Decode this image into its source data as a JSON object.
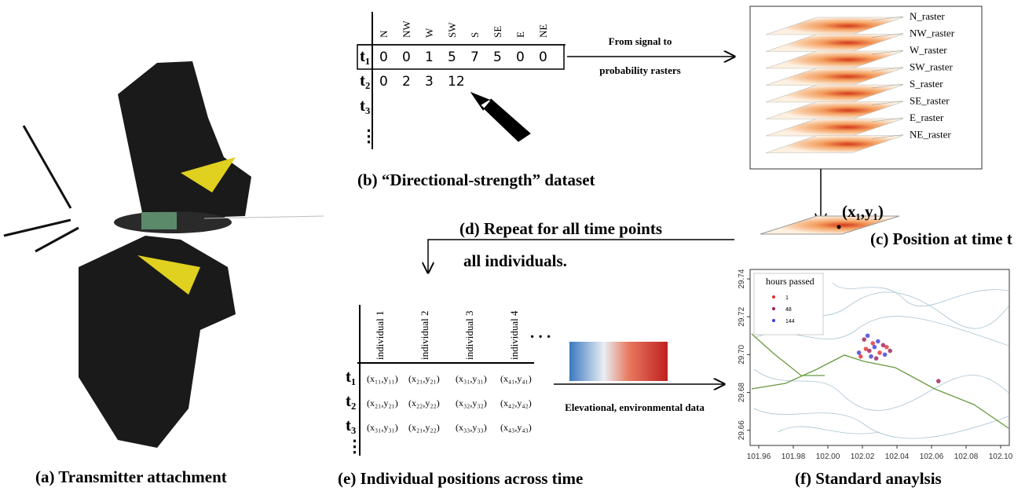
{
  "panel_a": {
    "caption": "(a) Transmitter attachment"
  },
  "panel_b": {
    "caption": "(b) “Directional-strength” dataset",
    "headers": [
      "N",
      "NW",
      "W",
      "SW",
      "S",
      "SE",
      "E",
      "NE"
    ],
    "rows": [
      {
        "label": "t₁",
        "values": [
          "0",
          "0",
          "1",
          "5",
          "7",
          "5",
          "0",
          "0"
        ]
      },
      {
        "label": "t₂",
        "values": [
          "0",
          "2",
          "3",
          "12"
        ]
      },
      {
        "label": "t₃",
        "values": []
      }
    ],
    "ellipsis": "⋮",
    "arrow_label": [
      "From signal to",
      "probability rasters"
    ]
  },
  "panel_c": {
    "rasters": [
      "N_raster",
      "NW_raster",
      "W_raster",
      "SW_raster",
      "S_raster",
      "SE_raster",
      "E_raster",
      "NE_raster"
    ],
    "point_label": "(x₁,y₁)",
    "caption": "(c) Position at time t"
  },
  "panel_d": {
    "caption": [
      "(d) Repeat for all time points",
      "all individuals."
    ]
  },
  "panel_e": {
    "caption": "(e) Individual positions across time",
    "headers": [
      "individual 1",
      "individual 2",
      "individual 3",
      "individual 4"
    ],
    "more": ". . .",
    "rows": [
      {
        "label": "t₁",
        "cells": [
          "(x₁₁,y₁₁)",
          "(x₂₁,y₂₁)",
          "(x₃₁,y₃₁)",
          "(x₄₁,y₄₁)"
        ]
      },
      {
        "label": "t₂",
        "cells": [
          "(x₂₁,y₂₁)",
          "(x₂₂,y₂₂)",
          "(x₃₂,y₃₂)",
          "(x₄₂,y₄₂)"
        ]
      },
      {
        "label": "t₃",
        "cells": [
          "(x₃₁,y₃₁)",
          "(x₂₁,y₂₂)",
          "(x₃₃,y₃₃)",
          "(x₄₃,y₄₃)"
        ]
      }
    ],
    "ellipsis": "⋮",
    "arrow_label": "Elevational, environmental data"
  },
  "panel_f": {
    "caption": "(f) Standard anaylsis",
    "legend_title": "hours passed",
    "xlim": [
      101.955,
      102.105
    ],
    "ylim": [
      29.652,
      29.745
    ],
    "xticks": [
      101.96,
      101.98,
      {
        "value": 102,
        "label": "102.00"
      },
      102.02,
      102.04,
      102.06,
      102.08,
      {
        "value": 102.1,
        "label": "102.10"
      }
    ],
    "yticks": [
      29.66,
      29.68,
      {
        "value": 29.7,
        "label": "29.70"
      },
      29.72,
      29.74
    ],
    "series": [
      {
        "name": "1",
        "color": "#e03030",
        "x": [
          102.022,
          102.026,
          102.03,
          102.019,
          102.034
        ],
        "y": [
          29.703,
          29.706,
          29.701,
          29.699,
          29.704
        ]
      },
      {
        "name": "48",
        "color": "#9b1d5a",
        "x": [
          102.021,
          102.024,
          102.028,
          102.032,
          102.036,
          102.064
        ],
        "y": [
          29.708,
          29.702,
          29.698,
          29.705,
          29.702,
          29.686
        ]
      },
      {
        "name": "144",
        "color": "#3b3bd6",
        "x": [
          102.018,
          102.025,
          102.029,
          102.033,
          102.023,
          102.027
        ],
        "y": [
          29.701,
          29.699,
          29.707,
          29.7,
          29.71,
          29.704
        ]
      }
    ]
  }
}
